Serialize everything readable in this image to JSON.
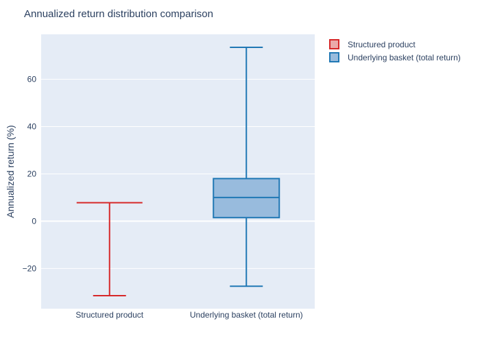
{
  "chart_data": {
    "type": "box",
    "title": "Annualized return distribution comparison",
    "xlabel": "",
    "ylabel": "Annualized return (%)",
    "ylim": [
      -37,
      79
    ],
    "yticks": [
      -20,
      0,
      20,
      40,
      60
    ],
    "ytick_labels": [
      "−20",
      "0",
      "20",
      "40",
      "60"
    ],
    "categories": [
      "Structured product",
      "Underlying basket (total return)"
    ],
    "grid": true,
    "legend_position": "top-right",
    "series": [
      {
        "name": "Structured product",
        "color": "#d62728",
        "fill": "#eba9a9",
        "min": -31.5,
        "q1": 7.8,
        "median": 7.8,
        "q3": 7.8,
        "max": 7.8
      },
      {
        "name": "Underlying basket (total return)",
        "color": "#1f77b4",
        "fill": "#98bbdd",
        "min": -27.5,
        "q1": 1.5,
        "median": 10,
        "q3": 18,
        "max": 73.5
      }
    ]
  }
}
